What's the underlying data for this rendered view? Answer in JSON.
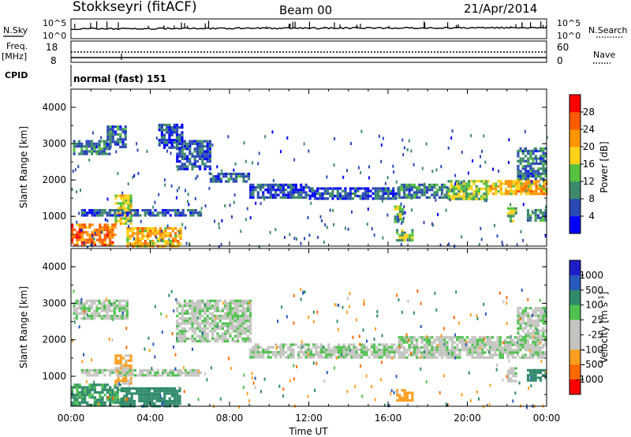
{
  "header": {
    "station": "Stokkseyri (fitACF)",
    "beam": "Beam 00",
    "date": "21/Apr/2014"
  },
  "strip": {
    "nsky_label": "N.Sky",
    "nsky_ticks": [
      "10^5",
      "10^0"
    ],
    "nsearch_label": "N.Search",
    "nsearch_ticks": [
      "10^5",
      "10^0"
    ],
    "freq_label_1": "Freq.",
    "freq_label_2": "[MHz]",
    "freq_ticks": [
      "18",
      "8"
    ],
    "nave_label": "Nave",
    "nave_ticks": [
      "60",
      "0"
    ],
    "cpid_label": "CPID",
    "cpid_value": "normal (fast) 151"
  },
  "colors": {
    "power_scale": [
      "#0000ff",
      "#2b49b5",
      "#3d8a6b",
      "#56c23f",
      "#ffd21a",
      "#ff9500",
      "#ff5a00",
      "#ff0000"
    ],
    "velocity_scale": [
      "#ff0000",
      "#ff6a00",
      "#ff9e21",
      "#c4c4c0",
      "#c4c4c0",
      "#4fc24f",
      "#2f8a6a",
      "#2858ba",
      "#1e1ec8"
    ],
    "noise": "#000000"
  },
  "chart_data": [
    {
      "type": "heatmap",
      "panel": "power",
      "xlabel": "",
      "ylabel": "Slant Range [km]",
      "x_unit": "hours UT",
      "xlim": [
        0,
        24
      ],
      "ylim": [
        180,
        4500
      ],
      "y_ticks": [
        "1000",
        "2000",
        "3000",
        "4000"
      ],
      "colorbar_label": "Power [dB]",
      "colorbar_ticks": [
        "4",
        "8",
        "12",
        "16",
        "20",
        "24",
        "28"
      ],
      "clim": [
        0,
        31
      ],
      "regions": [
        {
          "t0": 0.1,
          "t1": 2.0,
          "r0": 2750,
          "r1": 3100,
          "p": 9
        },
        {
          "t0": 1.8,
          "t1": 2.8,
          "r0": 2900,
          "r1": 3500,
          "p": 8
        },
        {
          "t0": 4.4,
          "t1": 5.6,
          "r0": 2900,
          "r1": 3550,
          "p": 6
        },
        {
          "t0": 5.3,
          "t1": 7.0,
          "r0": 2300,
          "r1": 3100,
          "p": 6
        },
        {
          "t0": 7.0,
          "t1": 9.0,
          "r0": 1950,
          "r1": 2200,
          "p": 8
        },
        {
          "t0": 9.0,
          "t1": 12.0,
          "r0": 1550,
          "r1": 1900,
          "p": 6
        },
        {
          "t0": 12.0,
          "t1": 16.5,
          "r0": 1500,
          "r1": 1800,
          "p": 6
        },
        {
          "t0": 16.5,
          "t1": 19.0,
          "r0": 1550,
          "r1": 1900,
          "p": 9
        },
        {
          "t0": 19.0,
          "t1": 21.0,
          "r0": 1450,
          "r1": 2000,
          "p": 15
        },
        {
          "t0": 21.0,
          "t1": 24.0,
          "r0": 1600,
          "r1": 2000,
          "p": 20
        },
        {
          "t0": 22.5,
          "t1": 24.0,
          "r0": 2000,
          "r1": 2900,
          "p": 8
        },
        {
          "t0": 0.0,
          "t1": 2.2,
          "r0": 200,
          "r1": 800,
          "p": 24
        },
        {
          "t0": 2.2,
          "t1": 3.0,
          "r0": 800,
          "r1": 1600,
          "p": 16
        },
        {
          "t0": 2.8,
          "t1": 5.5,
          "r0": 200,
          "r1": 700,
          "p": 20
        },
        {
          "t0": 0.5,
          "t1": 6.5,
          "r0": 1000,
          "r1": 1200,
          "p": 7
        },
        {
          "t0": 16.4,
          "t1": 17.2,
          "r0": 350,
          "r1": 650,
          "p": 14
        },
        {
          "t0": 16.3,
          "t1": 16.7,
          "r0": 850,
          "r1": 1300,
          "p": 12
        },
        {
          "t0": 22.0,
          "t1": 22.5,
          "r0": 850,
          "r1": 1250,
          "p": 14
        },
        {
          "t0": 23.0,
          "t1": 24.0,
          "r0": 900,
          "r1": 1200,
          "p": 10
        }
      ]
    },
    {
      "type": "heatmap",
      "panel": "velocity",
      "xlabel": "Time UT",
      "ylabel": "Slant Range [km]",
      "x_unit": "hours UT",
      "xlim": [
        0,
        24
      ],
      "ylim": [
        180,
        4500
      ],
      "x_ticks": [
        "00:00",
        "04:00",
        "08:00",
        "12:00",
        "16:00",
        "20:00",
        "00:00"
      ],
      "y_ticks": [
        "1000",
        "2000",
        "3000",
        "4000"
      ],
      "colorbar_label": "Velocity [m s^-1]",
      "colorbar_ticks": [
        "1000",
        "500",
        "100",
        "25",
        "-25",
        "-100",
        "-500",
        "-1000"
      ],
      "regions": [
        {
          "t0": 0.1,
          "t1": 2.8,
          "r0": 2600,
          "r1": 3100,
          "v": 0
        },
        {
          "t0": 5.3,
          "t1": 9.0,
          "r0": 1950,
          "r1": 3100,
          "v": 0
        },
        {
          "t0": 9.0,
          "t1": 16.5,
          "r0": 1500,
          "r1": 1900,
          "v": 0
        },
        {
          "t0": 16.5,
          "t1": 24.0,
          "r0": 1500,
          "r1": 2100,
          "v": 0
        },
        {
          "t0": 22.5,
          "t1": 24.0,
          "r0": 2100,
          "r1": 2900,
          "v": 0
        },
        {
          "t0": 0.0,
          "t1": 2.5,
          "r0": 200,
          "r1": 800,
          "v": 120
        },
        {
          "t0": 2.5,
          "t1": 5.5,
          "r0": 200,
          "r1": 700,
          "v": 160
        },
        {
          "t0": 2.2,
          "t1": 3.0,
          "r0": 800,
          "r1": 1600,
          "v": -120
        },
        {
          "t0": 0.5,
          "t1": 6.5,
          "r0": 1000,
          "r1": 1200,
          "v": 0
        },
        {
          "t0": 16.4,
          "t1": 17.2,
          "r0": 350,
          "r1": 650,
          "v": -250
        },
        {
          "t0": 23.0,
          "t1": 24.0,
          "r0": 900,
          "r1": 1200,
          "v": 300
        },
        {
          "t0": 22.0,
          "t1": 22.5,
          "r0": 850,
          "r1": 1250,
          "v": 0
        }
      ]
    }
  ]
}
